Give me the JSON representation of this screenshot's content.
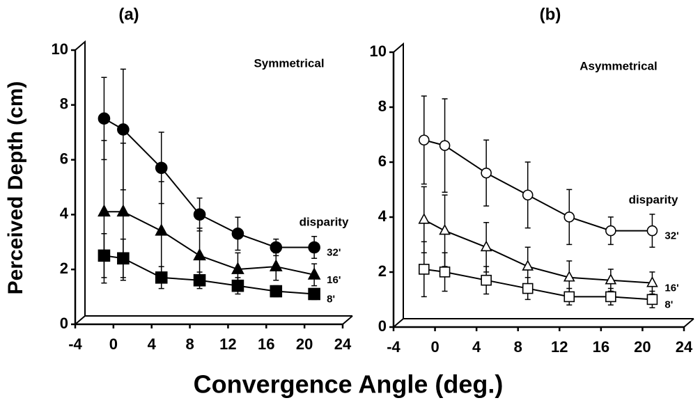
{
  "ylabel": "Perceived Depth (cm)",
  "xlabel": "Convergence Angle (deg.)",
  "chart_data": [
    {
      "type": "line",
      "title": "(a)",
      "annotations": [
        "Symmetrical",
        "disparity"
      ],
      "filled": true,
      "x": [
        -2,
        0,
        4,
        8,
        12,
        16,
        20
      ],
      "xlim": [
        -4,
        24
      ],
      "xticks": [
        -4,
        0,
        4,
        8,
        12,
        16,
        20,
        24
      ],
      "ylim": [
        0,
        10
      ],
      "yticks": [
        0,
        2,
        4,
        6,
        8,
        10
      ],
      "series": [
        {
          "name": "32'",
          "marker": "circle",
          "color": "#000",
          "values": [
            7.2,
            6.8,
            5.4,
            3.7,
            3.0,
            2.5,
            2.5
          ],
          "errors": [
            1.5,
            2.2,
            1.3,
            0.6,
            0.6,
            0.3,
            0.4
          ]
        },
        {
          "name": "16'",
          "marker": "triangle",
          "color": "#000",
          "values": [
            3.8,
            3.8,
            3.1,
            2.2,
            1.7,
            1.8,
            1.5
          ],
          "errors": [
            2.6,
            2.5,
            1.8,
            1.0,
            0.6,
            0.5,
            0.4
          ]
        },
        {
          "name": "8'",
          "marker": "square",
          "color": "#000",
          "values": [
            2.2,
            2.1,
            1.4,
            1.3,
            1.1,
            0.9,
            0.8
          ],
          "errors": [
            0.8,
            0.7,
            0.4,
            0.3,
            0.3,
            0.2,
            0.2
          ]
        }
      ]
    },
    {
      "type": "line",
      "title": "(b)",
      "annotations": [
        "Asymmetrical",
        "disparity"
      ],
      "filled": false,
      "x": [
        -2,
        0,
        4,
        8,
        12,
        16,
        20
      ],
      "xlim": [
        -4,
        24
      ],
      "xticks": [
        -4,
        0,
        4,
        8,
        12,
        16,
        20,
        24
      ],
      "ylim": [
        0,
        10
      ],
      "yticks": [
        0,
        2,
        4,
        6,
        8,
        10
      ],
      "series": [
        {
          "name": "32'",
          "marker": "circle",
          "color": "#000",
          "values": [
            6.5,
            6.3,
            5.3,
            4.5,
            3.7,
            3.2,
            3.2
          ],
          "errors": [
            1.6,
            1.7,
            1.2,
            1.2,
            1.0,
            0.5,
            0.6
          ]
        },
        {
          "name": "16'",
          "marker": "triangle",
          "color": "#000",
          "values": [
            3.6,
            3.2,
            2.6,
            1.9,
            1.5,
            1.4,
            1.3
          ],
          "errors": [
            1.2,
            1.3,
            0.9,
            0.7,
            0.6,
            0.4,
            0.4
          ]
        },
        {
          "name": "8'",
          "marker": "square",
          "color": "#000",
          "values": [
            1.8,
            1.7,
            1.4,
            1.1,
            0.8,
            0.8,
            0.7
          ],
          "errors": [
            1.0,
            0.7,
            0.5,
            0.4,
            0.3,
            0.3,
            0.3
          ]
        }
      ]
    }
  ]
}
